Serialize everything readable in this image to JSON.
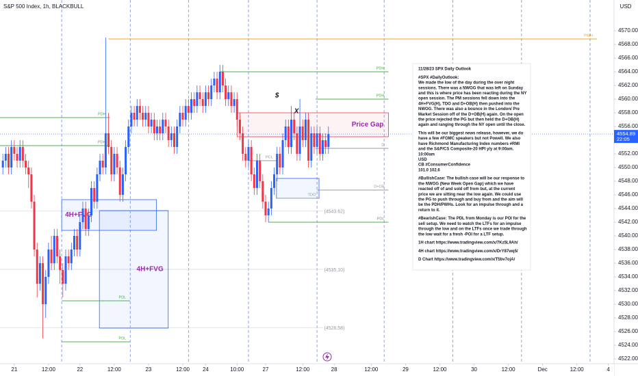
{
  "chart_data": {
    "type": "candlestick",
    "title": "S&P 500 Index, 1h, BLACKBULL",
    "currency": "USD",
    "countdown": "22:05",
    "xlim": [
      -5,
      210
    ],
    "ylim": [
      4521.3,
      4574.5
    ],
    "xticks": [
      {
        "value": 0,
        "label": "21"
      },
      {
        "value": 12,
        "label": "12:00"
      },
      {
        "value": 23,
        "label": "22"
      },
      {
        "value": 35,
        "label": "12:00"
      },
      {
        "value": 47,
        "label": "23"
      },
      {
        "value": 59,
        "label": "12:00"
      },
      {
        "value": 67,
        "label": "24"
      },
      {
        "value": 78,
        "label": "10:00"
      },
      {
        "value": 88,
        "label": "27"
      },
      {
        "value": 101,
        "label": "12:00"
      },
      {
        "value": 112,
        "label": "28"
      },
      {
        "value": 125,
        "label": "12:00"
      },
      {
        "value": 137,
        "label": "29"
      },
      {
        "value": 149,
        "label": "12:00"
      },
      {
        "value": 161,
        "label": "30"
      },
      {
        "value": 173,
        "label": "12:00"
      },
      {
        "value": 185,
        "label": "Dec"
      },
      {
        "value": 197,
        "label": "12:00"
      },
      {
        "value": 208,
        "label": "4"
      }
    ],
    "yticks": [
      {
        "value": 4522,
        "label": "4522.00"
      },
      {
        "value": 4524,
        "label": "4524.00"
      },
      {
        "value": 4526,
        "label": "4526.00"
      },
      {
        "value": 4528,
        "label": "4528.00"
      },
      {
        "value": 4530,
        "label": "4530.00"
      },
      {
        "value": 4532,
        "label": "4532.00"
      },
      {
        "value": 4534,
        "label": "4534.00"
      },
      {
        "value": 4536,
        "label": "4536.00"
      },
      {
        "value": 4538,
        "label": "4538.00"
      },
      {
        "value": 4540,
        "label": "4540.00"
      },
      {
        "value": 4542,
        "label": "4542.00"
      },
      {
        "value": 4544,
        "label": "4544.00"
      },
      {
        "value": 4546,
        "label": "4546.00"
      },
      {
        "value": 4548,
        "label": "4548.00"
      },
      {
        "value": 4550,
        "label": "4550.00"
      },
      {
        "value": 4552,
        "label": "4552.00"
      },
      {
        "value": 4556,
        "label": "4556.00"
      },
      {
        "value": 4558,
        "label": "4558.00"
      },
      {
        "value": 4560,
        "label": "4560.00"
      },
      {
        "value": 4562,
        "label": "4562.00"
      },
      {
        "value": 4564,
        "label": "4564.00"
      },
      {
        "value": 4566,
        "label": "4566.00"
      },
      {
        "value": 4568,
        "label": "4568.00"
      },
      {
        "value": 4570,
        "label": "4570.00"
      }
    ],
    "up_color": "#2962ff",
    "down_color": "#f23645",
    "x": [
      -4,
      -3,
      -2,
      -1,
      0,
      1,
      2,
      3,
      4,
      5,
      6,
      7,
      8,
      9,
      10,
      11,
      12,
      13,
      14,
      15,
      16,
      17,
      18,
      19,
      20,
      21,
      22,
      23,
      24,
      25,
      26,
      27,
      28,
      29,
      30,
      31,
      32,
      33,
      34,
      35,
      36,
      37,
      38,
      39,
      40,
      41,
      42,
      43,
      44,
      45,
      46,
      47,
      48,
      49,
      50,
      51,
      52,
      53,
      54,
      55,
      56,
      57,
      58,
      59,
      60,
      61,
      62,
      63,
      64,
      65,
      66,
      67,
      68,
      69,
      70,
      71,
      72,
      73,
      74,
      75,
      76,
      77,
      78,
      79,
      80,
      81,
      82,
      83,
      84,
      85,
      86,
      87,
      88,
      89,
      90,
      91,
      92,
      93,
      94,
      95,
      96,
      97,
      98,
      99,
      100,
      101,
      102,
      103,
      104,
      105,
      106,
      107,
      108,
      109,
      110
    ],
    "open": [
      4550,
      4551,
      4552,
      4550,
      4553,
      4552,
      4551,
      4553,
      4551,
      4550,
      4549,
      4545,
      4538,
      4533,
      4536,
      4530,
      4534,
      4538,
      4536,
      4540,
      4537,
      4535,
      4533,
      4537,
      4536,
      4538,
      4540,
      4538,
      4542,
      4544,
      4541,
      4543,
      4547,
      4545,
      4549,
      4551,
      4550,
      4555,
      4553,
      4549,
      4552,
      4550,
      4546,
      4549,
      4553,
      4556,
      4558,
      4557,
      4559,
      4558,
      4557,
      4558,
      4556,
      4557,
      4555,
      4556,
      4555,
      4557,
      4556,
      4554,
      4555,
      4553,
      4556,
      4558,
      4557,
      4559,
      4558,
      4560,
      4559,
      4561,
      4560,
      4559,
      4561,
      4560,
      4562,
      4563,
      4561,
      4564,
      4562,
      4560,
      4561,
      4559,
      4560,
      4557,
      4555,
      4552,
      4551,
      4553,
      4549,
      4547,
      4551,
      4548,
      4545,
      4543,
      4544,
      4547,
      4549,
      4552,
      4550,
      4554,
      4556,
      4553,
      4557,
      4555,
      4552,
      4556,
      4554,
      4557,
      4551,
      4555,
      4553,
      4555,
      4552,
      4554,
      4553
    ],
    "high": [
      4552,
      4553,
      4553,
      4554,
      4554,
      4553,
      4554,
      4554,
      4552,
      4551,
      4550,
      4546,
      4539,
      4537,
      4537,
      4535,
      4539,
      4540,
      4541,
      4541,
      4538,
      4536,
      4538,
      4538,
      4539,
      4541,
      4541,
      4543,
      4545,
      4545,
      4544,
      4548,
      4548,
      4550,
      4552,
      4552,
      4569,
      4558,
      4554,
      4553,
      4553,
      4551,
      4550,
      4554,
      4557,
      4559,
      4559,
      4560,
      4560,
      4559,
      4559,
      4559,
      4558,
      4558,
      4557,
      4557,
      4558,
      4558,
      4557,
      4556,
      4556,
      4557,
      4559,
      4559,
      4560,
      4560,
      4561,
      4561,
      4562,
      4562,
      4561,
      4562,
      4562,
      4563,
      4564,
      4564,
      4565,
      4565,
      4563,
      4562,
      4562,
      4561,
      4561,
      4558,
      4556,
      4553,
      4554,
      4554,
      4550,
      4552,
      4552,
      4549,
      4546,
      4545,
      4548,
      4550,
      4553,
      4553,
      4555,
      4557,
      4557,
      4559,
      4558,
      4556,
      4560,
      4557,
      4558,
      4558,
      4556,
      4556,
      4556,
      4556,
      4555,
      4555,
      4556
    ],
    "low": [
      4549,
      4550,
      4549,
      4549,
      4551,
      4550,
      4550,
      4550,
      4549,
      4547,
      4544,
      4537,
      4531,
      4532,
      4525,
      4528,
      4533,
      4535,
      4535,
      4536,
      4533,
      4531,
      4532,
      4535,
      4535,
      4537,
      4537,
      4537,
      4541,
      4540,
      4540,
      4542,
      4544,
      4544,
      4548,
      4549,
      4549,
      4552,
      4548,
      4548,
      4549,
      4545,
      4545,
      4548,
      4552,
      4555,
      4556,
      4556,
      4557,
      4556,
      4556,
      4555,
      4555,
      4554,
      4554,
      4554,
      4554,
      4555,
      4553,
      4553,
      4552,
      4552,
      4555,
      4556,
      4556,
      4557,
      4557,
      4558,
      4558,
      4559,
      4558,
      4558,
      4559,
      4559,
      4561,
      4560,
      4560,
      4561,
      4559,
      4559,
      4558,
      4558,
      4556,
      4554,
      4551,
      4550,
      4550,
      4548,
      4546,
      4546,
      4547,
      4544,
      4542,
      4542,
      4543,
      4546,
      4548,
      4549,
      4549,
      4553,
      4552,
      4552,
      4554,
      4551,
      4551,
      4553,
      4553,
      4550,
      4550,
      4552,
      4552,
      4551,
      4551,
      4552,
      4552
    ],
    "close": [
      4551,
      4552,
      4550,
      4553,
      4552,
      4551,
      4553,
      4551,
      4550,
      4549,
      4545,
      4538,
      4533,
      4536,
      4530,
      4534,
      4538,
      4536,
      4540,
      4537,
      4535,
      4533,
      4537,
      4536,
      4538,
      4540,
      4538,
      4542,
      4544,
      4541,
      4543,
      4547,
      4545,
      4549,
      4551,
      4550,
      4555,
      4553,
      4549,
      4552,
      4550,
      4546,
      4549,
      4553,
      4556,
      4558,
      4557,
      4559,
      4558,
      4557,
      4558,
      4556,
      4557,
      4555,
      4556,
      4555,
      4557,
      4556,
      4554,
      4555,
      4553,
      4556,
      4558,
      4557,
      4559,
      4558,
      4560,
      4559,
      4561,
      4560,
      4559,
      4561,
      4560,
      4562,
      4563,
      4561,
      4564,
      4562,
      4560,
      4561,
      4559,
      4560,
      4557,
      4555,
      4552,
      4551,
      4553,
      4549,
      4547,
      4551,
      4548,
      4545,
      4543,
      4544,
      4547,
      4549,
      4552,
      4550,
      4554,
      4556,
      4553,
      4557,
      4555,
      4552,
      4556,
      4554,
      4557,
      4551,
      4555,
      4553,
      4555,
      4552,
      4554,
      4553,
      4554.89
    ],
    "session_breaks": [
      16.6,
      40.6,
      61,
      82,
      106,
      129.5,
      153.5,
      177.6,
      201.6
    ],
    "price_lines": [
      {
        "value": 4543.62,
        "label": "(4543.62)",
        "from": -5,
        "to": 108
      },
      {
        "value": 4535.1,
        "label": "(4535.10)",
        "from": -5,
        "to": 108
      },
      {
        "value": 4526.58,
        "label": "(4526.58)",
        "from": -5,
        "to": 108
      }
    ],
    "boxes": [
      {
        "label": "4H+FVG",
        "top": 4545.3,
        "bottom": 4540.8,
        "from": 16.6,
        "to": 49.8,
        "color": "#2962ff",
        "align": "left"
      },
      {
        "label": "4H+FVG",
        "top": 4543.7,
        "bottom": 4526.5,
        "from": 29.8,
        "to": 53.9,
        "color": "#2962ff",
        "align": "right"
      },
      {
        "label": "Price Gap",
        "top": 4558.0,
        "bottom": 4554.5,
        "from": 78,
        "to": 131,
        "color": "#f23645",
        "align": "right"
      },
      {
        "top": 4548.4,
        "bottom": 4545.5,
        "from": 91.8,
        "to": 106.7,
        "color": "#2962ff"
      }
    ],
    "levels": [
      {
        "label": "PWH",
        "value": 4568.8,
        "from": 33,
        "to": 204,
        "color": "#f5a623"
      },
      {
        "label": "PDH",
        "value": 4564.0,
        "from": 72,
        "to": 131,
        "color": "#4caf50"
      },
      {
        "label": "PDH",
        "value": 4560.0,
        "from": 105.5,
        "to": 131,
        "color": "#4caf50"
      },
      {
        "label": "PDH",
        "value": 4557.3,
        "from": -5,
        "to": 33.5,
        "color": "#4caf50"
      },
      {
        "label": "PDH",
        "value": 4553.2,
        "from": -5,
        "to": 33.5,
        "color": "#4caf50"
      },
      {
        "label": "D",
        "value": 4552.8,
        "from": 105.5,
        "to": 131,
        "color": "#9598a1"
      },
      {
        "label": "PCL",
        "value": 4551.0,
        "from": 82,
        "to": 92,
        "color": "#9598a1"
      },
      {
        "label": "D+OB",
        "value": 4546.7,
        "from": 106,
        "to": 131,
        "color": "#9598a1"
      },
      {
        "label": "TDO",
        "value": 4545.5,
        "from": 92,
        "to": 107,
        "color": "#9598a1"
      },
      {
        "label": "PDL",
        "value": 4542.0,
        "from": 89,
        "to": 131,
        "color": "#4caf50"
      },
      {
        "label": "PDL",
        "value": 4530.5,
        "from": 16.6,
        "to": 40.6,
        "color": "#4caf50"
      },
      {
        "label": "PDL",
        "value": 4524.5,
        "from": 16.6,
        "to": 40.6,
        "color": "#4caf50"
      }
    ],
    "annotations": [
      {
        "text": "$",
        "x": 92,
        "y": 4560.5
      },
      {
        "text": "X",
        "x": 98.8,
        "y": 4558.2
      }
    ],
    "note": {
      "paragraphs": [
        [
          "11/28/23 SPX Daily Outlook"
        ],
        [
          "#SPX #DailyOutlook:",
          "We made the low of the day during the over night",
          "sessions.  There was a NWOG that was left on Sunday",
          "and this is where price has been reacting during the NY",
          "open session.  The PM sessions fell down into the",
          "4H+FVG(H), TDO and D+OB(H) then pushed into the",
          "NWOG.  There was also a bounce in the London/ Pre",
          "Market Session off of the D+OB(H) again.  On the open",
          "the price rejected the PG but then held the D+OB(H)",
          "again and ranging through the NY open until the close."
        ],
        [
          "This will be our biggest news release, however, we do",
          "have a few #FOMC speakers but not Powell.  We also",
          "have Richmond Manufacturing Index numbers  #RMI",
          "and the S&P/CS Composite-20 HPI y/y at 9:00am.",
          "10:00am",
          "USD",
          "CB #ConsumerConfidence",
          "101.0 102.6"
        ],
        [
          "#BullishCase: The bullish case will be our response to",
          "the NWOG (New Week Open Gap) which we have",
          "reacted off of and sold off from but, at the current",
          "price we are sitting near the low again.  We could use",
          "the PG to push through and buy from and the aim will",
          "be the PDH/PWHs.  Look for an impulse through and a",
          "return to it."
        ],
        [
          "#BearishCase: The PDL from Monday is our POI for the",
          "sell setup. We need to watch the LTFs for an impulse",
          "through the low and on the LTFs once we trade through",
          "the low wait for a fresh -POI for a LTF setup."
        ],
        [
          "1H chart https://www.tradingview.com/x/7Kz5L9Ah/"
        ],
        [
          "4H chart https://www.tradingview.com/x/DrY87wq5/"
        ],
        [
          "D Chart https://www.tradingview.com/x/T5bv7ojA/"
        ]
      ]
    }
  }
}
